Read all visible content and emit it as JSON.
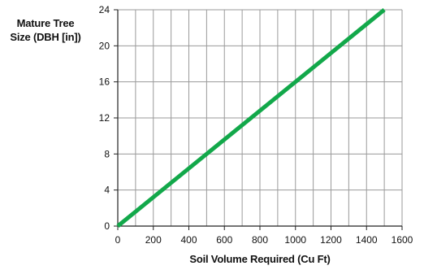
{
  "chart_data": {
    "type": "line",
    "title": "",
    "xlabel": "Soil Volume Required (Cu Ft)",
    "ylabel_lines": [
      "Mature Tree",
      "Size (DBH [in])"
    ],
    "x_ticks": [
      0,
      200,
      400,
      600,
      800,
      1000,
      1200,
      1400,
      1600
    ],
    "y_ticks": [
      0,
      4,
      8,
      12,
      16,
      20,
      24
    ],
    "xlim": [
      0,
      1600
    ],
    "ylim": [
      0,
      24
    ],
    "x_minor_grid_step": 100,
    "grid": true,
    "legend": "none",
    "series": [
      {
        "x": [
          0,
          1500
        ],
        "y": [
          0,
          24
        ],
        "color": "#12a84a"
      }
    ]
  }
}
